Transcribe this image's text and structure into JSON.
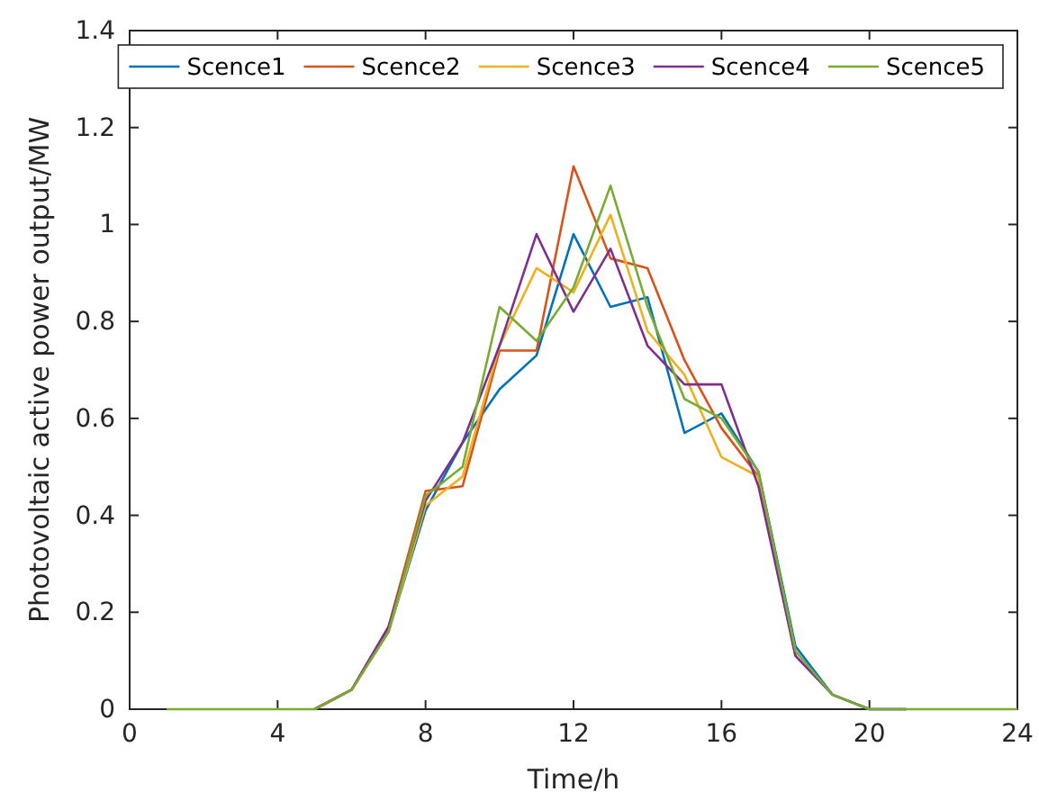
{
  "chart_data": {
    "type": "line",
    "xlabel": "Time/h",
    "ylabel": "Photovoltaic active power output/MW",
    "x": [
      1,
      2,
      3,
      4,
      5,
      6,
      7,
      8,
      9,
      10,
      11,
      12,
      13,
      14,
      15,
      16,
      17,
      18,
      19,
      20,
      21,
      22,
      23,
      24
    ],
    "series": [
      {
        "name": "Scence1",
        "color": "#0072bd",
        "values": [
          null,
          null,
          null,
          null,
          0,
          0.04,
          0.16,
          0.41,
          0.55,
          0.66,
          0.73,
          0.98,
          0.83,
          0.85,
          0.57,
          0.61,
          0.49,
          0.13,
          0.03,
          0,
          0,
          null,
          null,
          null
        ]
      },
      {
        "name": "Scence2",
        "color": "#d95319",
        "values": [
          null,
          null,
          null,
          null,
          0,
          0.04,
          0.17,
          0.45,
          0.46,
          0.74,
          0.74,
          1.12,
          0.93,
          0.91,
          0.72,
          0.58,
          0.48,
          0.11,
          null,
          null,
          null,
          null,
          null,
          null
        ]
      },
      {
        "name": "Scence3",
        "color": "#edb120",
        "values": [
          null,
          null,
          null,
          null,
          0,
          0.04,
          0.16,
          0.42,
          0.48,
          0.75,
          0.91,
          0.86,
          1.02,
          0.78,
          0.69,
          0.52,
          0.48,
          0.12,
          null,
          null,
          null,
          null,
          null,
          null
        ]
      },
      {
        "name": "Scence4",
        "color": "#7e2f8e",
        "values": [
          null,
          null,
          null,
          null,
          0,
          0.04,
          0.17,
          0.43,
          0.55,
          0.75,
          0.98,
          0.82,
          0.95,
          0.75,
          0.67,
          0.67,
          0.46,
          0.11,
          0.03,
          0,
          0,
          null,
          null,
          null
        ]
      },
      {
        "name": "Scence5",
        "color": "#77ac30",
        "values": [
          0,
          0,
          0,
          0,
          0,
          0.04,
          0.16,
          0.44,
          0.5,
          0.83,
          0.76,
          0.87,
          1.08,
          0.83,
          0.64,
          0.6,
          0.49,
          0.12,
          0.03,
          0,
          0,
          0,
          0,
          0
        ]
      }
    ],
    "xlim": [
      0,
      24
    ],
    "xticks": [
      0,
      4,
      8,
      12,
      16,
      20,
      24
    ],
    "ylim": [
      0,
      1.4
    ],
    "yticks": [
      0,
      0.2,
      0.4,
      0.6,
      0.8,
      1,
      1.2,
      1.4
    ],
    "legend": "top right",
    "grid": false,
    "marker": "none",
    "line_style": "solid"
  }
}
